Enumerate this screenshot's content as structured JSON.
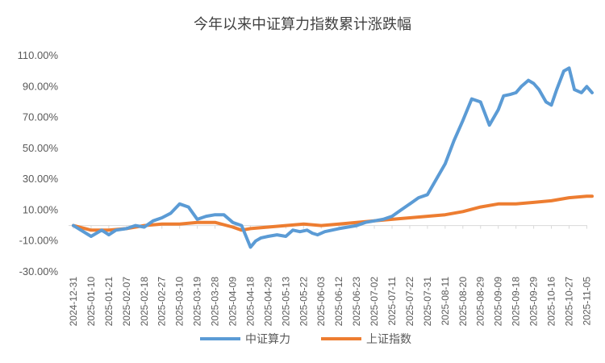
{
  "chart_data": {
    "type": "line",
    "title": "今年以来中证算力指数累计涨跌幅",
    "xlabel": "",
    "ylabel": "",
    "ylim": [
      -30,
      110
    ],
    "y_ticks": [
      "110.00%",
      "90.00%",
      "70.00%",
      "50.00%",
      "30.00%",
      "10.00%",
      "-10.00%",
      "-30.00%"
    ],
    "x_ticks": [
      "2024-12-31",
      "2025-01-10",
      "2025-01-21",
      "2025-02-07",
      "2025-02-18",
      "2025-02-27",
      "2025-03-10",
      "2025-03-19",
      "2025-03-28",
      "2025-04-09",
      "2025-04-18",
      "2025-04-29",
      "2025-05-13",
      "2025-05-22",
      "2025-06-03",
      "2025-06-12",
      "2025-06-23",
      "2025-07-02",
      "2025-07-11",
      "2025-07-22",
      "2025-07-31",
      "2025-08-11",
      "2025-08-20",
      "2025-08-29",
      "2025-09-09",
      "2025-09-18",
      "2025-09-29",
      "2025-10-16",
      "2025-10-27",
      "2025-11-05"
    ],
    "grid": false,
    "legend_position": "bottom",
    "series": [
      {
        "name": "中证算力",
        "color": "#5b9bd5",
        "x": [
          0,
          1,
          1.6,
          2,
          2.4,
          3,
          3.5,
          4,
          4.5,
          5,
          5.5,
          6,
          6.5,
          7,
          7.5,
          8,
          8.5,
          9,
          9.5,
          10,
          10.3,
          10.6,
          11,
          11.5,
          12,
          12.4,
          12.8,
          13.2,
          13.5,
          13.8,
          14.2,
          14.6,
          15,
          15.5,
          16,
          16.5,
          17,
          17.5,
          18,
          18.5,
          19,
          19.5,
          20,
          20.5,
          21,
          21.5,
          22,
          22.5,
          23,
          23.5,
          24,
          24.3,
          24.7,
          25,
          25.3,
          25.7,
          26,
          26.3,
          26.7,
          27,
          27.3,
          27.7,
          28,
          28.3,
          28.7,
          29,
          29.3
        ],
        "values": [
          0,
          -7,
          -3,
          -6,
          -3,
          -2,
          0,
          -1,
          3,
          5,
          8,
          14,
          12,
          4,
          6,
          7,
          7,
          2,
          0,
          -14,
          -10,
          -8,
          -7,
          -6,
          -7,
          -3,
          -4,
          -3,
          -5,
          -6,
          -4,
          -3,
          -2,
          -1,
          0,
          2,
          3,
          4,
          6,
          10,
          14,
          18,
          20,
          30,
          40,
          55,
          68,
          82,
          80,
          65,
          75,
          84,
          85,
          86,
          90,
          94,
          92,
          88,
          80,
          78,
          88,
          100,
          102,
          88,
          86,
          90,
          86
        ]
      },
      {
        "name": "上证指数",
        "color": "#ed7d31",
        "x": [
          0,
          1,
          2,
          3,
          4,
          5,
          6,
          7,
          8,
          9,
          9.5,
          10,
          11,
          12,
          13,
          14,
          15,
          16,
          17,
          18,
          19,
          20,
          21,
          22,
          23,
          24,
          25,
          26,
          27,
          28,
          29,
          29.3
        ],
        "values": [
          0,
          -3,
          -3,
          -2,
          0,
          1,
          1,
          2,
          2,
          -1,
          -3,
          -2,
          -1,
          0,
          1,
          0,
          1,
          2,
          3,
          4,
          5,
          6,
          7,
          9,
          12,
          14,
          14,
          15,
          16,
          18,
          19,
          19
        ]
      }
    ]
  }
}
